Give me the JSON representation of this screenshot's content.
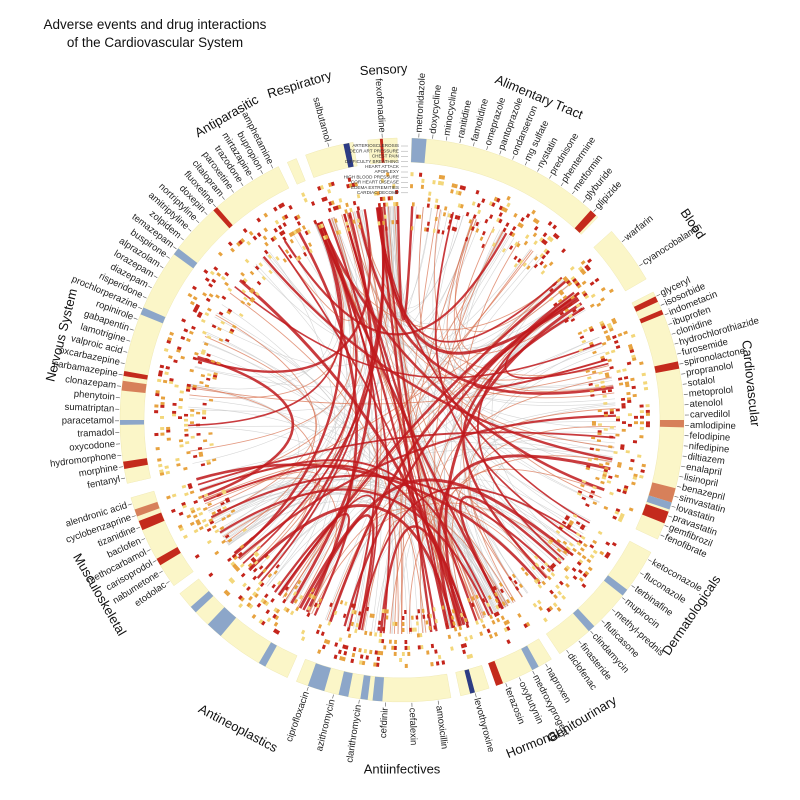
{
  "title": {
    "line1": "Adverse events  and drug interactions",
    "line2": "of the Cardiovascular System"
  },
  "colors": {
    "ring_base": "#fbf6c8",
    "ring_highlight": "#8ca6c9",
    "ring_dark": "#2d3c84",
    "ring_red": "#c42a1c",
    "ring_orange": "#d7805a",
    "link_red": "#c0191c",
    "link_light_red": "#d9714f",
    "link_gray": "#c8c8c8",
    "tick_orange": "#e7a23f",
    "tick_red": "#c4241b",
    "tick_yellow": "#f3d77a"
  },
  "adverse_events": [
    "ARTERIOSCLEROSIS",
    "DECR ART PRESSURE",
    "CHEST PAIN",
    "DIFFICULTY BREATHING",
    "HEART ATTACK",
    "APOPLEXY",
    "HIGH BLOOD PRESSURE",
    "COR HEART DISEASE",
    "EDEMA EXTREMITIES",
    "CARDIAC DECOMP"
  ],
  "categories": [
    {
      "name": "Alimentary Tract",
      "start": 2,
      "end": 44,
      "label_angle": 23,
      "drugs": [
        "metronidazole",
        "doxycycline",
        "minocycline",
        "ranitidine",
        "famotidine",
        "omeprazole",
        "pantoprazole",
        "ondansetron",
        "mg sulfate",
        "nystatin",
        "prednisone",
        "phentermine",
        "metformin",
        "glyburide",
        "glipizide"
      ],
      "highlights": [
        {
          "at": 2,
          "w": 3,
          "c": "ring_highlight"
        },
        {
          "at": 42,
          "w": 1.5,
          "c": "ring_red"
        }
      ]
    },
    {
      "name": "Blood",
      "start": 48,
      "end": 60,
      "label_angle": 56,
      "drugs": [
        "warfarin",
        "cyanocobalamin"
      ],
      "highlights": []
    },
    {
      "name": "Cardiovascular",
      "start": 63,
      "end": 115,
      "label_angle": 84,
      "drugs": [
        "glyceryl",
        "isosorbide",
        "indometacin",
        "ibuprofen",
        "clonidine",
        "hydrochlorothiazide",
        "furosemide",
        "spironolactone",
        "propranolol",
        "sotalol",
        "metoprolol",
        "atenolol",
        "carvedilol",
        "amlodipine",
        "felodipine",
        "nifedipine",
        "diltiazem",
        "enalapril",
        "lisinopril",
        "benazepril",
        "simvastatin",
        "lovastatin",
        "pravastatin",
        "gemfibrozil",
        "fenofibrate"
      ],
      "highlights": [
        {
          "at": 64,
          "w": 1.2,
          "c": "ring_red"
        },
        {
          "at": 67,
          "w": 1,
          "c": "ring_red"
        },
        {
          "at": 78,
          "w": 1.5,
          "c": "ring_red"
        },
        {
          "at": 90,
          "w": 1.5,
          "c": "ring_orange"
        },
        {
          "at": 104,
          "w": 3,
          "c": "ring_orange"
        },
        {
          "at": 107,
          "w": 1.5,
          "c": "ring_highlight"
        },
        {
          "at": 109,
          "w": 2.5,
          "c": "ring_red"
        }
      ]
    },
    {
      "name": "Dermatologicals",
      "start": 118,
      "end": 146,
      "label_angle": 124,
      "drugs": [
        "ketoconazole",
        "fluconazole",
        "terbinafine",
        "mupirocin",
        "methyl-prednis",
        "fluticasone",
        "clindamycin",
        "finasteride",
        "diclofenac"
      ],
      "highlights": [
        {
          "at": 127,
          "w": 1.5,
          "c": "ring_highlight"
        },
        {
          "at": 137,
          "w": 1.5,
          "c": "ring_highlight"
        }
      ]
    },
    {
      "name": "Genitourinary",
      "start": 148,
      "end": 160,
      "label_angle": 149,
      "drugs": [
        "naproxen",
        "medroxyprogest",
        "oxybutynin",
        "terazosin"
      ],
      "highlights": [
        {
          "at": 151,
          "w": 1.5,
          "c": "ring_highlight"
        },
        {
          "at": 159,
          "w": 1.5,
          "c": "ring_red"
        }
      ]
    },
    {
      "name": "Hormonal",
      "start": 162,
      "end": 168,
      "label_angle": 158,
      "drugs": [
        "levothyroxine"
      ],
      "highlights": [
        {
          "at": 165,
          "w": 1,
          "c": "ring_dark"
        }
      ]
    },
    {
      "name": "Antiinfectives",
      "start": 170,
      "end": 202,
      "label_angle": 180,
      "drugs": [
        "amoxicillin",
        "cefalexin",
        "cefdinir",
        "clarithromycin",
        "azithromycin",
        "ciprofloxacin"
      ],
      "highlights": [
        {
          "at": 184,
          "w": 2,
          "c": "ring_highlight"
        },
        {
          "at": 187,
          "w": 1.5,
          "c": "ring_highlight"
        },
        {
          "at": 191,
          "w": 2,
          "c": "ring_highlight"
        },
        {
          "at": 196,
          "w": 3.5,
          "c": "ring_highlight"
        }
      ]
    },
    {
      "name": "Antineoplastics",
      "start": 204,
      "end": 232,
      "label_angle": 208,
      "drugs": [],
      "highlights": [
        {
          "at": 209,
          "w": 1.5,
          "c": "ring_highlight"
        },
        {
          "at": 220,
          "w": 3.5,
          "c": "ring_highlight"
        },
        {
          "at": 227,
          "w": 1.5,
          "c": "ring_highlight"
        }
      ]
    },
    {
      "name": "Musculoskeletal",
      "start": 234,
      "end": 254,
      "label_angle": 240,
      "drugs": [
        "etodolac",
        "nabumetone",
        "carisoprodol",
        "methocarbamol",
        "baclofen",
        "tizanidine",
        "cyclobenzaprine",
        "alendronic acid"
      ],
      "highlights": [
        {
          "at": 239,
          "w": 1.5,
          "c": "ring_red"
        },
        {
          "at": 247,
          "w": 2,
          "c": "ring_red"
        },
        {
          "at": 250,
          "w": 1.5,
          "c": "ring_orange"
        }
      ]
    },
    {
      "name": "Nervous System",
      "start": 257,
      "end": 334,
      "label_angle": 284,
      "drugs": [
        "fentanyl",
        "morphine",
        "hydromorphone",
        "oxycodone",
        "tramadol",
        "paracetamol",
        "sumatriptan",
        "phenytoin",
        "clonazepam",
        "carbamazepine",
        "oxcarbazepine",
        "valproic acid",
        "lamotrigine",
        "gabapentin",
        "ropinirole",
        "prochlorperazine",
        "risperidone",
        "diazepam",
        "lorazepam",
        "alprazolam",
        "buspirone",
        "temazepam",
        "zolpidem",
        "amitriptyline",
        "nortriptyline",
        "doxepin",
        "fluoxetine",
        "citalopram",
        "paroxetine",
        "trazodone",
        "mirtazapine",
        "bupropion",
        "amphetamine"
      ],
      "highlights": [
        {
          "at": 260,
          "w": 1.5,
          "c": "ring_red"
        },
        {
          "at": 269,
          "w": 1,
          "c": "ring_highlight"
        },
        {
          "at": 276,
          "w": 2,
          "c": "ring_orange"
        },
        {
          "at": 279,
          "w": 1,
          "c": "ring_red"
        },
        {
          "at": 292,
          "w": 1.5,
          "c": "ring_highlight"
        },
        {
          "at": 306,
          "w": 1.5,
          "c": "ring_highlight"
        },
        {
          "at": 318,
          "w": 1,
          "c": "ring_red"
        }
      ]
    },
    {
      "name": "Antiparasitic",
      "start": 336,
      "end": 338,
      "label_angle": 330,
      "drugs": [],
      "highlights": []
    },
    {
      "name": "Respiratory",
      "start": 340,
      "end": 350,
      "label_angle": 343,
      "drugs": [
        "salbutamol"
      ],
      "highlights": [
        {
          "at": 348,
          "w": 1.2,
          "c": "ring_dark"
        }
      ]
    },
    {
      "name": "Sensory",
      "start": 353,
      "end": 359,
      "label_angle": 357,
      "drugs": [
        "fexofenadine"
      ],
      "highlights": [
        {
          "at": 355.5,
          "w": 0.6,
          "c": "ring_red"
        }
      ]
    }
  ]
}
